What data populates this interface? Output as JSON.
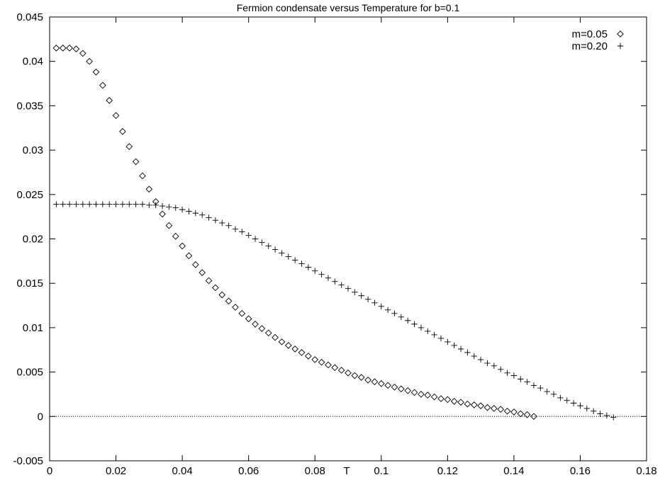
{
  "chart_data": {
    "type": "scatter",
    "title": "Fermion condensate versus Temperature for b=0.1",
    "xlabel": "T",
    "ylabel": "",
    "xlim": [
      0,
      0.18
    ],
    "ylim": [
      -0.005,
      0.045
    ],
    "x_ticks": [
      0,
      0.02,
      0.04,
      0.06,
      0.08,
      0.1,
      0.12,
      0.14,
      0.16,
      0.18
    ],
    "x_tick_labels": [
      "0",
      "0.02",
      "0.04",
      "0.06",
      "0.08",
      "0.1",
      "0.12",
      "0.14",
      "0.16",
      "0.18"
    ],
    "y_ticks": [
      -0.005,
      0,
      0.005,
      0.01,
      0.015,
      0.02,
      0.025,
      0.03,
      0.035,
      0.04,
      0.045
    ],
    "y_tick_labels": [
      "-0.005",
      "0",
      "0.005",
      "0.01",
      "0.015",
      "0.02",
      "0.025",
      "0.03",
      "0.035",
      "0.04",
      "0.045"
    ],
    "grid": false,
    "zero_line": true,
    "legend_position": "top-right",
    "series": [
      {
        "name": "m=0.05",
        "marker": "diamond",
        "x": [
          0.002,
          0.004,
          0.006,
          0.008,
          0.01,
          0.012,
          0.014,
          0.016,
          0.018,
          0.02,
          0.022,
          0.024,
          0.026,
          0.028,
          0.03,
          0.032,
          0.034,
          0.036,
          0.038,
          0.04,
          0.042,
          0.044,
          0.046,
          0.048,
          0.05,
          0.052,
          0.054,
          0.056,
          0.058,
          0.06,
          0.062,
          0.064,
          0.066,
          0.068,
          0.07,
          0.072,
          0.074,
          0.076,
          0.078,
          0.08,
          0.082,
          0.084,
          0.086,
          0.088,
          0.09,
          0.092,
          0.094,
          0.096,
          0.098,
          0.1,
          0.102,
          0.104,
          0.106,
          0.108,
          0.11,
          0.112,
          0.114,
          0.116,
          0.118,
          0.12,
          0.122,
          0.124,
          0.126,
          0.128,
          0.13,
          0.132,
          0.134,
          0.136,
          0.138,
          0.14,
          0.142,
          0.144,
          0.146
        ],
        "y": [
          0.0415,
          0.0415,
          0.0415,
          0.0414,
          0.0409,
          0.04,
          0.0388,
          0.0373,
          0.0356,
          0.0339,
          0.0321,
          0.0304,
          0.0287,
          0.0271,
          0.0256,
          0.0242,
          0.0228,
          0.0215,
          0.0203,
          0.0192,
          0.0181,
          0.0171,
          0.0162,
          0.0153,
          0.0145,
          0.0137,
          0.013,
          0.0123,
          0.0116,
          0.011,
          0.0104,
          0.0099,
          0.0094,
          0.0089,
          0.0084,
          0.008,
          0.0076,
          0.0072,
          0.0068,
          0.0064,
          0.0061,
          0.0058,
          0.0055,
          0.0052,
          0.0049,
          0.0046,
          0.0044,
          0.0041,
          0.0039,
          0.0037,
          0.0035,
          0.0033,
          0.0031,
          0.0029,
          0.0027,
          0.0025,
          0.0024,
          0.0022,
          0.002,
          0.0019,
          0.0017,
          0.0016,
          0.0014,
          0.0013,
          0.0012,
          0.001,
          0.0009,
          0.0008,
          0.0006,
          0.0005,
          0.0003,
          0.0002,
          0.0
        ]
      },
      {
        "name": "m=0.20",
        "marker": "plus",
        "x": [
          0.002,
          0.004,
          0.006,
          0.008,
          0.01,
          0.012,
          0.014,
          0.016,
          0.018,
          0.02,
          0.022,
          0.024,
          0.026,
          0.028,
          0.03,
          0.032,
          0.034,
          0.036,
          0.038,
          0.04,
          0.042,
          0.044,
          0.046,
          0.048,
          0.05,
          0.052,
          0.054,
          0.056,
          0.058,
          0.06,
          0.062,
          0.064,
          0.066,
          0.068,
          0.07,
          0.072,
          0.074,
          0.076,
          0.078,
          0.08,
          0.082,
          0.084,
          0.086,
          0.088,
          0.09,
          0.092,
          0.094,
          0.096,
          0.098,
          0.1,
          0.102,
          0.104,
          0.106,
          0.108,
          0.11,
          0.112,
          0.114,
          0.116,
          0.118,
          0.12,
          0.122,
          0.124,
          0.126,
          0.128,
          0.13,
          0.132,
          0.134,
          0.136,
          0.138,
          0.14,
          0.142,
          0.144,
          0.146,
          0.148,
          0.15,
          0.152,
          0.154,
          0.156,
          0.158,
          0.16,
          0.162,
          0.164,
          0.166,
          0.168,
          0.17
        ],
        "y": [
          0.0239,
          0.0239,
          0.0239,
          0.0239,
          0.0239,
          0.0239,
          0.0239,
          0.0239,
          0.0239,
          0.0239,
          0.0239,
          0.0239,
          0.0239,
          0.0239,
          0.0238,
          0.0238,
          0.0237,
          0.0236,
          0.0235,
          0.0233,
          0.0231,
          0.0229,
          0.0227,
          0.0224,
          0.0221,
          0.0218,
          0.0215,
          0.0211,
          0.0208,
          0.0204,
          0.02,
          0.0196,
          0.0192,
          0.0188,
          0.0184,
          0.018,
          0.0176,
          0.0172,
          0.0168,
          0.0164,
          0.016,
          0.0156,
          0.0152,
          0.0148,
          0.0144,
          0.014,
          0.0136,
          0.0132,
          0.0128,
          0.0124,
          0.012,
          0.0116,
          0.0112,
          0.0108,
          0.0104,
          0.01,
          0.0096,
          0.0092,
          0.0088,
          0.0084,
          0.008,
          0.0076,
          0.0072,
          0.0068,
          0.0064,
          0.006,
          0.0057,
          0.0053,
          0.0049,
          0.0046,
          0.0042,
          0.0039,
          0.0035,
          0.0032,
          0.0028,
          0.0025,
          0.0021,
          0.0018,
          0.0015,
          0.0012,
          0.0009,
          0.0006,
          0.0003,
          0.0001,
          -0.0001
        ]
      }
    ]
  }
}
